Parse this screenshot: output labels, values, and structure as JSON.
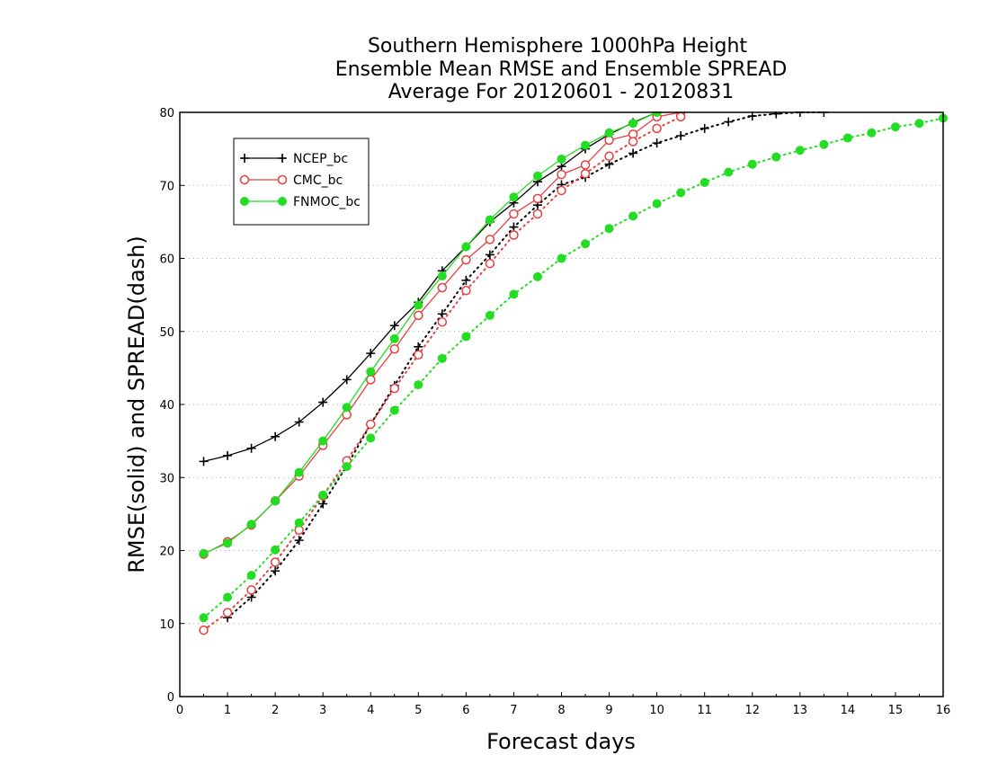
{
  "chart_data": {
    "type": "line",
    "title_lines": [
      "Southern Hemisphere 1000hPa Height",
      "Ensemble Mean RMSE and Ensemble SPREAD",
      "Average For 20120601 - 20120831"
    ],
    "xlabel": "Forecast days",
    "ylabel": "RMSE(solid) and SPREAD(dash)",
    "xlim": [
      0,
      16
    ],
    "ylim": [
      0,
      80
    ],
    "xticks": [
      0,
      1,
      2,
      3,
      4,
      5,
      6,
      7,
      8,
      9,
      10,
      11,
      12,
      13,
      14,
      15,
      16
    ],
    "yticks": [
      0,
      10,
      20,
      30,
      40,
      50,
      60,
      70,
      80
    ],
    "grid": "horizontal dotted",
    "legend": {
      "position": "top-left",
      "entries": [
        "NCEP_bc",
        "CMC_bc",
        "FNMOC_bc"
      ]
    },
    "series": [
      {
        "name": "NCEP_bc",
        "color": "#000000",
        "marker": "plus",
        "rmse": {
          "x": [
            0.5,
            1,
            1.5,
            2,
            2.5,
            3,
            3.5,
            4,
            4.5,
            5,
            5.5,
            6,
            6.5,
            7,
            7.5,
            8,
            8.5,
            9,
            9.5,
            10
          ],
          "y": [
            32.2,
            33.0,
            34.0,
            35.6,
            37.6,
            40.3,
            43.4,
            47.0,
            50.8,
            54.0,
            58.3,
            61.6,
            65.0,
            67.6,
            70.5,
            72.6,
            75.0,
            77.0,
            78.6,
            80.0
          ]
        },
        "spread": {
          "x": [
            1,
            1.5,
            2,
            2.5,
            3,
            3.5,
            4,
            4.5,
            5,
            5.5,
            6,
            6.5,
            7,
            7.5,
            8,
            8.5,
            9,
            9.5,
            10,
            10.5,
            11,
            11.5,
            12,
            12.5,
            13,
            13.5
          ],
          "y": [
            10.8,
            13.6,
            17.2,
            21.4,
            26.4,
            31.6,
            37.3,
            42.6,
            47.9,
            52.4,
            57.0,
            60.5,
            64.3,
            67.3,
            70.1,
            71.1,
            72.9,
            74.4,
            75.8,
            76.8,
            77.8,
            78.7,
            79.5,
            79.8,
            80.0,
            80.0
          ]
        }
      },
      {
        "name": "CMC_bc",
        "color": "#e84040",
        "marker": "open-circle",
        "rmse": {
          "x": [
            0.5,
            1,
            1.5,
            2,
            2.5,
            3,
            3.5,
            4,
            4.5,
            5,
            5.5,
            6,
            6.5,
            7,
            7.5,
            8,
            8.5,
            9,
            9.5,
            10,
            10.5
          ],
          "y": [
            19.5,
            21.2,
            23.5,
            26.8,
            30.2,
            34.4,
            38.6,
            43.4,
            47.6,
            52.2,
            56.0,
            59.8,
            62.6,
            66.1,
            68.2,
            71.5,
            72.8,
            76.2,
            77.0,
            79.4,
            80.0
          ]
        },
        "spread": {
          "x": [
            0.5,
            1,
            1.5,
            2,
            2.5,
            3,
            3.5,
            4,
            4.5,
            5,
            5.5,
            6,
            6.5,
            7,
            7.5,
            8,
            8.5,
            9,
            9.5,
            10,
            10.5
          ],
          "y": [
            9.1,
            11.5,
            14.6,
            18.4,
            22.8,
            27.5,
            32.3,
            37.3,
            42.2,
            46.8,
            51.3,
            55.6,
            59.3,
            63.2,
            66.1,
            69.3,
            71.6,
            74.0,
            76.0,
            77.8,
            79.4
          ]
        }
      },
      {
        "name": "FNMOC_bc",
        "color": "#22dd22",
        "marker": "filled-circle",
        "rmse": {
          "x": [
            0.5,
            1,
            1.5,
            2,
            2.5,
            3,
            3.5,
            4,
            4.5,
            5,
            5.5,
            6,
            6.5,
            7,
            7.5,
            8,
            8.5,
            9,
            9.5,
            10
          ],
          "y": [
            19.6,
            21.0,
            23.6,
            26.8,
            30.7,
            35.0,
            39.6,
            44.5,
            49.0,
            53.6,
            57.6,
            61.6,
            65.3,
            68.4,
            71.3,
            73.6,
            75.5,
            77.2,
            78.5,
            80.0
          ]
        },
        "spread": {
          "x": [
            0.5,
            1,
            1.5,
            2,
            2.5,
            3,
            3.5,
            4,
            4.5,
            5,
            5.5,
            6,
            6.5,
            7,
            7.5,
            8,
            8.5,
            9,
            9.5,
            10,
            10.5,
            11,
            11.5,
            12,
            12.5,
            13,
            13.5,
            14,
            14.5,
            15,
            15.5,
            16
          ],
          "y": [
            10.8,
            13.6,
            16.6,
            20.1,
            23.8,
            27.6,
            31.5,
            35.4,
            39.2,
            42.7,
            46.3,
            49.3,
            52.2,
            55.1,
            57.5,
            60.0,
            62.0,
            64.1,
            65.8,
            67.5,
            69.0,
            70.4,
            71.8,
            72.9,
            73.9,
            74.8,
            75.6,
            76.5,
            77.2,
            78.0,
            78.5,
            79.2
          ]
        }
      }
    ]
  }
}
